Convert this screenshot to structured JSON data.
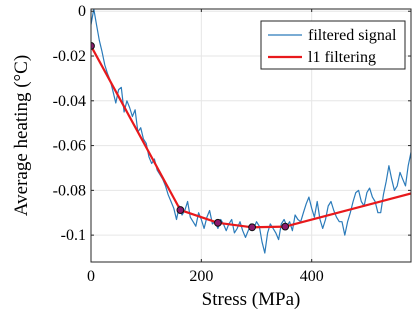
{
  "chart_data": {
    "type": "line",
    "title": "",
    "xlabel": "Stress (MPa)",
    "ylabel": "Average heating (°C)",
    "xlim": [
      0,
      580
    ],
    "ylim": [
      -0.112,
      0.001
    ],
    "xticks": [
      0,
      200,
      400
    ],
    "xtick_labels": [
      "0",
      "200",
      "400"
    ],
    "yticks": [
      0,
      -0.02,
      -0.04,
      -0.06,
      -0.08,
      -0.1
    ],
    "ytick_labels": [
      "0",
      "-0.02",
      "-0.04",
      "-0.06",
      "-0.08",
      "-0.1"
    ],
    "grid": true,
    "legend_position": "top-right",
    "series": [
      {
        "name": "filtered signal",
        "color": "#2b7bba",
        "x": [
          0,
          5,
          10,
          15,
          20,
          25,
          30,
          35,
          40,
          45,
          50,
          55,
          60,
          65,
          70,
          75,
          80,
          85,
          90,
          95,
          100,
          105,
          110,
          115,
          120,
          125,
          130,
          135,
          140,
          145,
          150,
          155,
          160,
          165,
          170,
          175,
          180,
          185,
          190,
          195,
          200,
          205,
          210,
          215,
          220,
          225,
          230,
          235,
          240,
          245,
          250,
          255,
          260,
          265,
          270,
          275,
          280,
          285,
          290,
          295,
          300,
          305,
          310,
          315,
          320,
          325,
          330,
          335,
          340,
          345,
          350,
          355,
          360,
          365,
          370,
          375,
          380,
          385,
          390,
          395,
          400,
          405,
          410,
          415,
          420,
          425,
          430,
          435,
          440,
          445,
          450,
          455,
          460,
          465,
          470,
          475,
          480,
          485,
          490,
          495,
          500,
          505,
          510,
          515,
          520,
          525,
          530,
          535,
          540,
          545,
          550,
          555,
          560,
          565,
          570,
          575,
          580
        ],
        "y": [
          -0.006,
          0.001,
          -0.006,
          -0.013,
          -0.018,
          -0.024,
          -0.028,
          -0.031,
          -0.036,
          -0.041,
          -0.035,
          -0.034,
          -0.045,
          -0.04,
          -0.043,
          -0.047,
          -0.044,
          -0.054,
          -0.052,
          -0.057,
          -0.059,
          -0.065,
          -0.068,
          -0.066,
          -0.071,
          -0.073,
          -0.075,
          -0.078,
          -0.082,
          -0.085,
          -0.088,
          -0.093,
          -0.087,
          -0.091,
          -0.089,
          -0.085,
          -0.092,
          -0.094,
          -0.096,
          -0.09,
          -0.093,
          -0.097,
          -0.092,
          -0.089,
          -0.095,
          -0.094,
          -0.097,
          -0.093,
          -0.095,
          -0.098,
          -0.095,
          -0.093,
          -0.099,
          -0.097,
          -0.094,
          -0.098,
          -0.101,
          -0.098,
          -0.095,
          -0.097,
          -0.094,
          -0.096,
          -0.103,
          -0.108,
          -0.099,
          -0.095,
          -0.097,
          -0.099,
          -0.102,
          -0.095,
          -0.093,
          -0.096,
          -0.094,
          -0.098,
          -0.091,
          -0.093,
          -0.094,
          -0.09,
          -0.086,
          -0.083,
          -0.088,
          -0.092,
          -0.085,
          -0.093,
          -0.097,
          -0.093,
          -0.087,
          -0.085,
          -0.089,
          -0.092,
          -0.094,
          -0.094,
          -0.1,
          -0.094,
          -0.09,
          -0.085,
          -0.081,
          -0.08,
          -0.085,
          -0.087,
          -0.081,
          -0.079,
          -0.083,
          -0.085,
          -0.09,
          -0.09,
          -0.082,
          -0.076,
          -0.069,
          -0.075,
          -0.08,
          -0.078,
          -0.072,
          -0.075,
          -0.078,
          -0.069,
          -0.063
        ]
      },
      {
        "name": "l1 filtering",
        "color": "#e8191c",
        "x": [
          0,
          162,
          230,
          292,
          352,
          580
        ],
        "y": [
          -0.0155,
          -0.0888,
          -0.0945,
          -0.0965,
          -0.0962,
          -0.0814
        ]
      }
    ],
    "breakpoints": {
      "x": [
        0,
        162,
        230,
        292,
        352
      ],
      "y": [
        -0.0155,
        -0.0888,
        -0.0945,
        -0.0965,
        -0.0962
      ]
    }
  }
}
